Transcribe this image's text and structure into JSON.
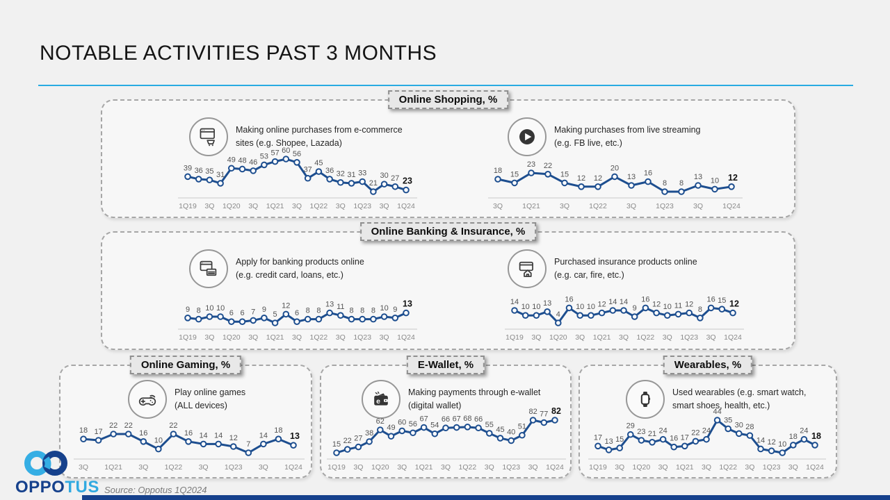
{
  "slide": {
    "title": "NOTABLE ACTIVITIES PAST 3 MONTHS",
    "source": "Source: Oppotus 1Q2024",
    "logo": {
      "text_primary": "OPPO",
      "text_secondary": "TUS"
    }
  },
  "colors": {
    "accent_blue": "#29abe2",
    "line_blue": "#1d4e8f",
    "navy": "#16418c",
    "label_grey": "#545454",
    "tick_grey": "#8a8a8a"
  },
  "sections": {
    "shopping": {
      "header": "Online Shopping, %",
      "ecommerce_desc": "Making online purchases from e-commerce\nsites (e.g. Shopee, Lazada)",
      "livestream_desc": "Making purchases from live streaming\n(e.g. FB live, etc.)"
    },
    "banking": {
      "header": "Online Banking & Insurance, %",
      "banking_desc": "Apply for banking products online\n(e.g. credit card, loans, etc.)",
      "insurance_desc": "Purchased insurance products online\n(e.g. car, fire, etc.)"
    },
    "gaming": {
      "header": "Online Gaming, %",
      "desc": "Play online games\n(ALL devices)"
    },
    "ewallet": {
      "header": "E-Wallet, %",
      "desc": "Making payments through e-wallet\n(digital wallet)"
    },
    "wearables": {
      "header": "Wearables, %",
      "desc": "Used wearables (e.g. smart watch,\nsmart shoes, health, etc.)"
    }
  },
  "chart_data": [
    {
      "id": "ecommerce",
      "type": "line",
      "title": "Making online purchases from e-commerce sites (e.g. Shopee, Lazada)",
      "x_ticks": [
        "1Q19",
        "3Q",
        "1Q20",
        "3Q",
        "1Q21",
        "3Q",
        "1Q22",
        "3Q",
        "1Q23",
        "3Q",
        "1Q24"
      ],
      "tick_every": 2,
      "values": [
        39,
        36,
        35,
        31,
        49,
        48,
        46,
        53,
        57,
        60,
        56,
        37,
        45,
        36,
        32,
        31,
        33,
        21,
        30,
        27,
        23
      ],
      "last_value_bold": true
    },
    {
      "id": "livestream",
      "type": "line",
      "title": "Making purchases from live streaming (e.g. FB live, etc.)",
      "x_ticks": [
        "3Q",
        "1Q21",
        "3Q",
        "1Q22",
        "3Q",
        "1Q23",
        "3Q",
        "1Q24"
      ],
      "tick_every": 2,
      "values": [
        18,
        15,
        23,
        22,
        15,
        12,
        12,
        20,
        13,
        16,
        8,
        8,
        13,
        10,
        12
      ],
      "last_value_bold": true
    },
    {
      "id": "banking",
      "type": "line",
      "title": "Apply for banking products online (e.g. credit card, loans, etc.)",
      "x_ticks": [
        "1Q19",
        "3Q",
        "1Q20",
        "3Q",
        "1Q21",
        "3Q",
        "1Q22",
        "3Q",
        "1Q23",
        "3Q",
        "1Q24"
      ],
      "tick_every": 2,
      "values": [
        9,
        8,
        10,
        10,
        6,
        6,
        7,
        9,
        5,
        12,
        6,
        8,
        8,
        13,
        11,
        8,
        8,
        8,
        10,
        9,
        13
      ],
      "last_value_bold": true
    },
    {
      "id": "insurance",
      "type": "line",
      "title": "Purchased insurance products online (e.g. car, fire, etc.)",
      "x_ticks": [
        "1Q19",
        "3Q",
        "1Q20",
        "3Q",
        "1Q21",
        "3Q",
        "1Q22",
        "3Q",
        "1Q23",
        "3Q",
        "1Q24"
      ],
      "tick_every": 2,
      "values": [
        14,
        10,
        10,
        13,
        4,
        16,
        10,
        10,
        12,
        14,
        14,
        9,
        16,
        12,
        10,
        11,
        12,
        8,
        16,
        15,
        12
      ],
      "last_value_bold": true
    },
    {
      "id": "gaming",
      "type": "line",
      "title": "Play online games (ALL devices)",
      "x_ticks": [
        "3Q",
        "1Q21",
        "3Q",
        "1Q22",
        "3Q",
        "1Q23",
        "3Q",
        "1Q24"
      ],
      "tick_every": 2,
      "values": [
        18,
        17,
        22,
        22,
        16,
        10,
        22,
        16,
        14,
        14,
        12,
        7,
        14,
        18,
        13
      ],
      "last_value_bold": true
    },
    {
      "id": "ewallet",
      "type": "line",
      "title": "Making payments through e-wallet (digital wallet)",
      "x_ticks": [
        "1Q19",
        "3Q",
        "1Q20",
        "3Q",
        "1Q21",
        "3Q",
        "1Q22",
        "3Q",
        "1Q23",
        "3Q",
        "1Q24"
      ],
      "tick_every": 2,
      "values": [
        15,
        22,
        27,
        38,
        62,
        49,
        60,
        56,
        67,
        54,
        66,
        67,
        68,
        66,
        55,
        45,
        40,
        51,
        82,
        77,
        82
      ],
      "last_value_bold": true
    },
    {
      "id": "wearables",
      "type": "line",
      "title": "Used wearables (e.g. smart watch, smart shoes, health, etc.)",
      "x_ticks": [
        "1Q19",
        "3Q",
        "1Q20",
        "3Q",
        "1Q21",
        "3Q",
        "1Q22",
        "3Q",
        "1Q23",
        "3Q",
        "1Q24"
      ],
      "tick_every": 2,
      "values": [
        17,
        13,
        15,
        29,
        23,
        21,
        24,
        16,
        17,
        22,
        24,
        44,
        35,
        30,
        28,
        14,
        12,
        10,
        18,
        24,
        18
      ],
      "last_value_bold": true
    }
  ]
}
